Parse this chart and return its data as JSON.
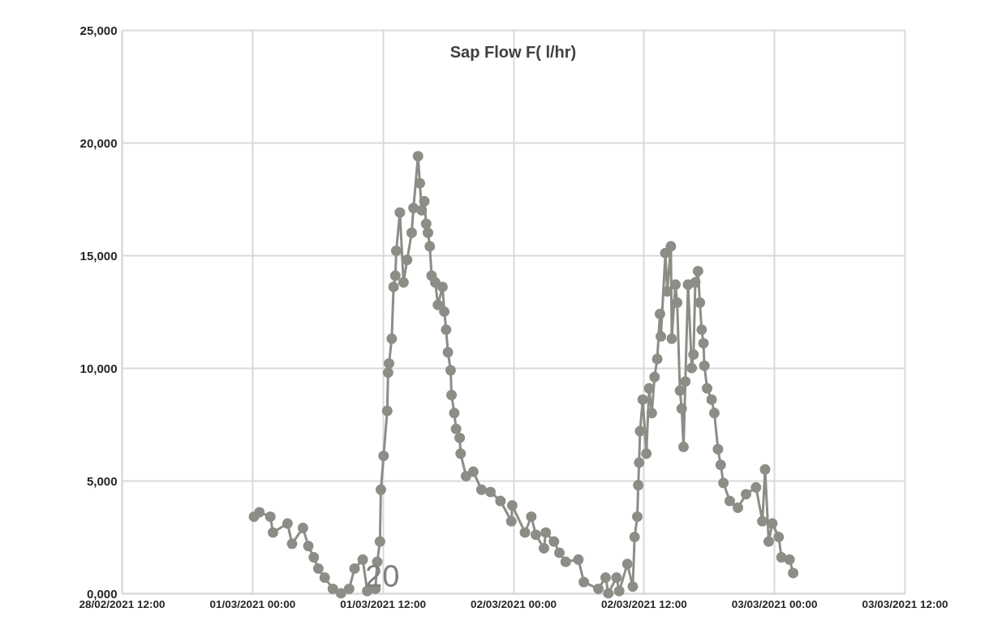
{
  "chart_data": {
    "type": "line",
    "title": "Sap Flow F( l/hr)",
    "annotations": [
      "20"
    ],
    "x": [
      "2021-03-01T00:10",
      "2021-03-01T00:40",
      "2021-03-01T01:40",
      "2021-03-01T01:55",
      "2021-03-01T03:15",
      "2021-03-01T03:40",
      "2021-03-01T04:40",
      "2021-03-01T05:10",
      "2021-03-01T05:40",
      "2021-03-01T06:05",
      "2021-03-01T06:40",
      "2021-03-01T07:25",
      "2021-03-01T08:10",
      "2021-03-01T08:55",
      "2021-03-01T09:25",
      "2021-03-01T10:10",
      "2021-03-01T10:35",
      "2021-03-01T11:20",
      "2021-03-01T11:30",
      "2021-03-01T11:45",
      "2021-03-01T11:50",
      "2021-03-01T12:05",
      "2021-03-01T12:25",
      "2021-03-01T12:30",
      "2021-03-01T12:35",
      "2021-03-01T12:50",
      "2021-03-01T13:00",
      "2021-03-01T13:10",
      "2021-03-01T13:15",
      "2021-03-01T13:35",
      "2021-03-01T13:55",
      "2021-03-01T14:15",
      "2021-03-01T14:40",
      "2021-03-01T14:50",
      "2021-03-01T15:15",
      "2021-03-01T15:25",
      "2021-03-01T15:35",
      "2021-03-01T15:50",
      "2021-03-01T16:00",
      "2021-03-01T16:10",
      "2021-03-01T16:20",
      "2021-03-01T16:30",
      "2021-03-01T16:50",
      "2021-03-01T17:05",
      "2021-03-01T17:30",
      "2021-03-01T17:40",
      "2021-03-01T17:50",
      "2021-03-01T18:00",
      "2021-03-01T18:15",
      "2021-03-01T18:20",
      "2021-03-01T18:35",
      "2021-03-01T18:45",
      "2021-03-01T19:05",
      "2021-03-01T19:10",
      "2021-03-01T19:40",
      "2021-03-01T20:20",
      "2021-03-01T21:05",
      "2021-03-01T21:55",
      "2021-03-01T22:50",
      "2021-03-01T23:50",
      "2021-03-01T23:55",
      "2021-03-02T01:05",
      "2021-03-02T01:40",
      "2021-03-02T02:05",
      "2021-03-02T02:50",
      "2021-03-02T03:00",
      "2021-03-02T03:45",
      "2021-03-02T04:15",
      "2021-03-02T04:50",
      "2021-03-02T06:00",
      "2021-03-02T06:30",
      "2021-03-02T07:50",
      "2021-03-02T08:30",
      "2021-03-02T08:45",
      "2021-03-02T09:30",
      "2021-03-02T09:45",
      "2021-03-02T10:30",
      "2021-03-02T11:00",
      "2021-03-02T11:10",
      "2021-03-02T11:25",
      "2021-03-02T11:30",
      "2021-03-02T11:35",
      "2021-03-02T11:40",
      "2021-03-02T11:55",
      "2021-03-02T12:15",
      "2021-03-02T12:30",
      "2021-03-02T12:45",
      "2021-03-02T13:00",
      "2021-03-02T13:15",
      "2021-03-02T13:30",
      "2021-03-02T13:35",
      "2021-03-02T14:00",
      "2021-03-02T14:10",
      "2021-03-02T14:30",
      "2021-03-02T14:35",
      "2021-03-02T14:55",
      "2021-03-02T15:05",
      "2021-03-02T15:20",
      "2021-03-02T15:30",
      "2021-03-02T15:40",
      "2021-03-02T15:50",
      "2021-03-02T16:05",
      "2021-03-02T16:25",
      "2021-03-02T16:35",
      "2021-03-02T16:45",
      "2021-03-02T17:00",
      "2021-03-02T17:10",
      "2021-03-02T17:20",
      "2021-03-02T17:30",
      "2021-03-02T17:35",
      "2021-03-02T17:50",
      "2021-03-02T18:15",
      "2021-03-02T18:30",
      "2021-03-02T18:50",
      "2021-03-02T19:05",
      "2021-03-02T19:20",
      "2021-03-02T19:55",
      "2021-03-02T20:40",
      "2021-03-02T21:25",
      "2021-03-02T22:20",
      "2021-03-02T22:55",
      "2021-03-02T23:10",
      "2021-03-02T23:30",
      "2021-03-02T23:50",
      "2021-03-03T00:25",
      "2021-03-03T00:40",
      "2021-03-03T01:25",
      "2021-03-03T01:45"
    ],
    "series": [
      {
        "color": "#8c8d86",
        "values": [
          3400,
          3600,
          3400,
          2700,
          3100,
          2200,
          2900,
          2100,
          1600,
          1100,
          700,
          200,
          0,
          200,
          1100,
          1500,
          100,
          200,
          1400,
          2300,
          4600,
          6100,
          8100,
          9800,
          10200,
          11300,
          13600,
          14100,
          15200,
          16900,
          13800,
          14800,
          16000,
          17100,
          19400,
          18200,
          17000,
          17400,
          16400,
          16000,
          15400,
          14100,
          13800,
          12800,
          13600,
          12500,
          11700,
          10700,
          9900,
          8800,
          8000,
          7300,
          6900,
          6200,
          5200,
          5400,
          4600,
          4500,
          4100,
          3200,
          3900,
          2700,
          3400,
          2600,
          2000,
          2700,
          2300,
          1800,
          1400,
          1500,
          500,
          200,
          700,
          0,
          700,
          100,
          1300,
          300,
          2500,
          3400,
          4800,
          5800,
          7200,
          8600,
          6200,
          9100,
          8000,
          9600,
          10400,
          12400,
          11400,
          15100,
          13400,
          15400,
          11300,
          13700,
          12900,
          9000,
          8200,
          6500,
          9400,
          13700,
          10000,
          10600,
          13800,
          14300,
          12900,
          11700,
          11100,
          10100,
          9100,
          8600,
          8000,
          6400,
          5700,
          4900,
          4100,
          3800,
          4400,
          4700,
          3200,
          5500,
          2300,
          3100,
          2500,
          1600,
          1500,
          900
        ]
      }
    ],
    "xlim": [
      "2021-02-28T12:00",
      "2021-03-03T12:00"
    ],
    "xticks": [
      {
        "value": "2021-02-28T12:00",
        "label": "28/02/2021 12:00"
      },
      {
        "value": "2021-03-01T00:00",
        "label": "01/03/2021 00:00"
      },
      {
        "value": "2021-03-01T12:00",
        "label": "01/03/2021 12:00"
      },
      {
        "value": "2021-03-02T00:00",
        "label": "02/03/2021 00:00"
      },
      {
        "value": "2021-03-02T12:00",
        "label": "02/03/2021 12:00"
      },
      {
        "value": "2021-03-03T00:00",
        "label": "03/03/2021 00:00"
      },
      {
        "value": "2021-03-03T12:00",
        "label": "03/03/2021 12:00"
      }
    ],
    "ylim": [
      0,
      25000
    ],
    "yticks": [
      {
        "value": 0,
        "label": "0,000"
      },
      {
        "value": 5000,
        "label": "5,000"
      },
      {
        "value": 10000,
        "label": "10,000"
      },
      {
        "value": 15000,
        "label": "15,000"
      },
      {
        "value": 20000,
        "label": "20,000"
      },
      {
        "value": 25000,
        "label": "25,000"
      }
    ],
    "grid": true,
    "marker": "circle",
    "line_style": "solid"
  }
}
